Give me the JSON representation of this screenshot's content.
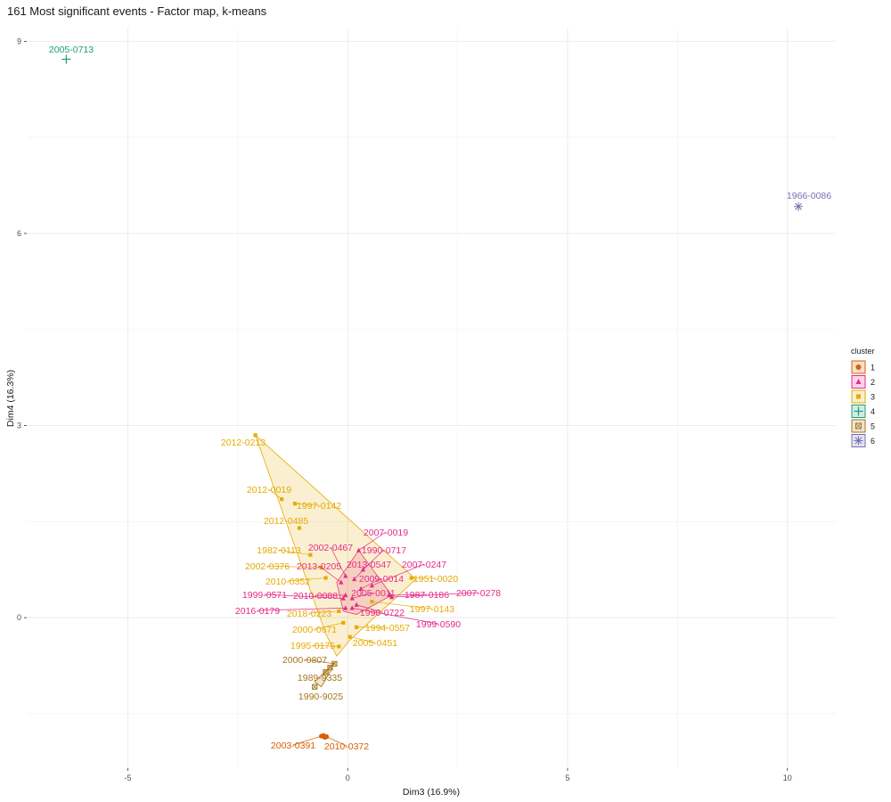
{
  "chart_data": {
    "type": "scatter",
    "title": "161 Most significant events - Factor map, k-means",
    "xlabel": "Dim3 (16.9%)",
    "ylabel": "Dim4 (16.3%)",
    "xlim": [
      -7.3,
      11.1
    ],
    "ylim": [
      -2.35,
      9.2
    ],
    "x_ticks": [
      -5,
      0,
      5,
      10
    ],
    "y_ticks": [
      0,
      3,
      6,
      9
    ],
    "grid": true,
    "legend": {
      "title": "cluster",
      "placement": "right",
      "entries": [
        "1",
        "2",
        "3",
        "4",
        "5",
        "6"
      ]
    },
    "clusters": [
      {
        "name": "1",
        "color": "#d95f02",
        "shape": "circle",
        "hull": [
          [
            -0.6,
            -1.83
          ],
          [
            -0.45,
            -1.83
          ],
          [
            -0.45,
            -1.88
          ],
          [
            -0.6,
            -1.88
          ]
        ],
        "points": [
          {
            "label": "2003-0391",
            "x": -0.6,
            "y": -1.85
          },
          {
            "label": "2010-0372",
            "x": -0.48,
            "y": -1.86
          },
          {
            "x": -0.55,
            "y": -1.84
          },
          {
            "x": -0.52,
            "y": -1.87
          }
        ]
      },
      {
        "name": "2",
        "color": "#e7298a",
        "shape": "triangle",
        "hull": [
          [
            0.25,
            1.05
          ],
          [
            1.0,
            0.35
          ],
          [
            0.2,
            0.05
          ],
          [
            -0.1,
            0.1
          ],
          [
            -0.25,
            0.55
          ]
        ],
        "points": [
          {
            "label": "2007-0019",
            "x": 0.25,
            "y": 1.05
          },
          {
            "label": "2002-0467",
            "x": -0.05,
            "y": 0.65
          },
          {
            "label": "1990-0717",
            "x": 0.35,
            "y": 0.75
          },
          {
            "label": "2013-0205",
            "x": -0.15,
            "y": 0.55
          },
          {
            "label": "2013-0547",
            "x": 0.15,
            "y": 0.6
          },
          {
            "label": "2007-0247",
            "x": 0.55,
            "y": 0.5
          },
          {
            "label": "2009-0014",
            "x": 0.3,
            "y": 0.45
          },
          {
            "label": "2010-0088",
            "x": -0.05,
            "y": 0.35
          },
          {
            "label": "2005-0011",
            "x": 0.1,
            "y": 0.3
          },
          {
            "label": "1987-0186",
            "x": 0.95,
            "y": 0.35
          },
          {
            "label": "2007-0278",
            "x": 1.0,
            "y": 0.32
          },
          {
            "label": "1999-0571",
            "x": -0.1,
            "y": 0.3
          },
          {
            "label": "2016-0179",
            "x": -0.05,
            "y": 0.15
          },
          {
            "label": "1990-0722",
            "x": 0.2,
            "y": 0.2
          },
          {
            "label": "1999-0590",
            "x": 0.1,
            "y": 0.15
          }
        ]
      },
      {
        "name": "3",
        "color": "#e6ab02",
        "shape": "square",
        "hull": [
          [
            -2.1,
            2.85
          ],
          [
            1.55,
            0.6
          ],
          [
            0.05,
            -0.35
          ],
          [
            -0.25,
            -0.6
          ],
          [
            -0.5,
            -0.25
          ]
        ],
        "points": [
          {
            "label": "2012-0213",
            "x": -2.1,
            "y": 2.85
          },
          {
            "label": "2012-0019",
            "x": -1.5,
            "y": 1.85
          },
          {
            "label": "1997-0142",
            "x": -1.2,
            "y": 1.78
          },
          {
            "label": "2012-0485",
            "x": -1.1,
            "y": 1.4
          },
          {
            "label": "1982-0113",
            "x": -0.85,
            "y": 0.98
          },
          {
            "label": "2002-0376",
            "x": -0.6,
            "y": 0.78
          },
          {
            "label": "2010-0352",
            "x": -0.5,
            "y": 0.62
          },
          {
            "label": "1951-0020",
            "x": 1.45,
            "y": 0.62
          },
          {
            "label": "1997-0143",
            "x": 0.55,
            "y": 0.25
          },
          {
            "label": "2018-0223",
            "x": -0.2,
            "y": 0.1
          },
          {
            "label": "2000-0671",
            "x": -0.1,
            "y": -0.08
          },
          {
            "label": "1994-0557",
            "x": 0.2,
            "y": -0.15
          },
          {
            "label": "1995-0175",
            "x": -0.2,
            "y": -0.45
          },
          {
            "label": "2005-0451",
            "x": 0.05,
            "y": -0.3
          }
        ]
      },
      {
        "name": "4",
        "color": "#1b9e77",
        "shape": "cross",
        "hull": [],
        "points": [
          {
            "label": "2005-0713",
            "x": -6.4,
            "y": 8.72
          }
        ]
      },
      {
        "name": "5",
        "color": "#a6761d",
        "shape": "square-x",
        "hull": [
          [
            -0.3,
            -0.7
          ],
          [
            -0.4,
            -0.85
          ],
          [
            -0.6,
            -1.08
          ],
          [
            -0.75,
            -1.0
          ]
        ],
        "points": [
          {
            "label": "2000-0807",
            "x": -0.3,
            "y": -0.72
          },
          {
            "label": "1989-9335",
            "x": -0.5,
            "y": -0.85
          },
          {
            "label": "1990-9025",
            "x": -0.75,
            "y": -1.08
          },
          {
            "x": -0.4,
            "y": -0.78
          }
        ]
      },
      {
        "name": "6",
        "color": "#7570b3",
        "shape": "asterisk",
        "hull": [],
        "points": [
          {
            "label": "1966-0086",
            "x": 10.25,
            "y": 6.42
          }
        ]
      }
    ]
  }
}
